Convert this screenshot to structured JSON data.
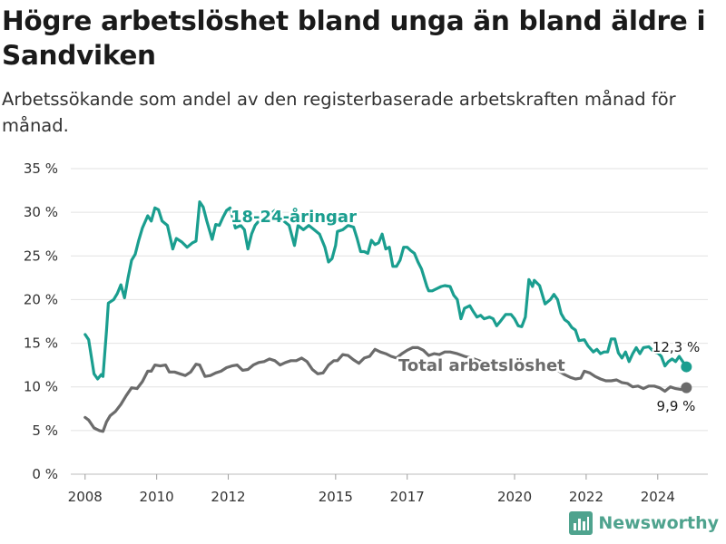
{
  "title": "Högre arbetslöshet bland unga än bland äldre i Sandviken",
  "subtitle": "Arbetssökande som andel av den registerbaserade arbetskraften månad för månad.",
  "brand": {
    "name": "Newsworthy",
    "icon": "bar-chart-icon",
    "color": "#4fa38e"
  },
  "chart_data": {
    "type": "line",
    "ylim": [
      0,
      35
    ],
    "yticks": [
      "0 %",
      "5 %",
      "10 %",
      "15 %",
      "20 %",
      "25 %",
      "30 %",
      "35 %"
    ],
    "ytick_values": [
      0,
      5,
      10,
      15,
      20,
      25,
      30,
      35
    ],
    "xlim": [
      2007.6,
      2025.4
    ],
    "xticks": [
      "2008",
      "2010",
      "2012",
      "2015",
      "2017",
      "2020",
      "2022",
      "2024"
    ],
    "xtick_values": [
      2008,
      2010,
      2012,
      2015,
      2017,
      2020,
      2022,
      2024
    ],
    "grid": true,
    "series": [
      {
        "name": "18-24-åringar",
        "color": "#1a9e8f",
        "end_label": "12,3 %",
        "points": [
          [
            2008.0,
            16.0
          ],
          [
            2008.1,
            15.4
          ],
          [
            2008.25,
            11.5
          ],
          [
            2008.35,
            10.9
          ],
          [
            2008.45,
            11.4
          ],
          [
            2008.5,
            11.2
          ],
          [
            2008.6,
            16.5
          ],
          [
            2008.65,
            19.6
          ],
          [
            2008.8,
            20.0
          ],
          [
            2008.9,
            20.7
          ],
          [
            2009.0,
            21.7
          ],
          [
            2009.1,
            20.2
          ],
          [
            2009.2,
            22.5
          ],
          [
            2009.3,
            24.5
          ],
          [
            2009.4,
            25.2
          ],
          [
            2009.5,
            26.8
          ],
          [
            2009.6,
            28.2
          ],
          [
            2009.75,
            29.6
          ],
          [
            2009.85,
            29.0
          ],
          [
            2009.95,
            30.5
          ],
          [
            2010.05,
            30.3
          ],
          [
            2010.15,
            29.0
          ],
          [
            2010.3,
            28.5
          ],
          [
            2010.45,
            25.8
          ],
          [
            2010.55,
            27.0
          ],
          [
            2010.7,
            26.6
          ],
          [
            2010.85,
            26.0
          ],
          [
            2011.0,
            26.5
          ],
          [
            2011.1,
            26.7
          ],
          [
            2011.2,
            31.2
          ],
          [
            2011.3,
            30.6
          ],
          [
            2011.4,
            29.0
          ],
          [
            2011.55,
            26.9
          ],
          [
            2011.65,
            28.6
          ],
          [
            2011.75,
            28.5
          ],
          [
            2011.85,
            29.4
          ],
          [
            2011.95,
            30.2
          ],
          [
            2012.05,
            30.5
          ],
          [
            2012.2,
            28.2
          ],
          [
            2012.35,
            28.5
          ],
          [
            2012.45,
            28.0
          ],
          [
            2012.55,
            25.8
          ],
          [
            2012.65,
            27.5
          ],
          [
            2012.75,
            28.5
          ],
          [
            2012.85,
            29.0
          ],
          [
            2013.0,
            29.5
          ],
          [
            2013.15,
            29.7
          ],
          [
            2013.3,
            30.2
          ],
          [
            2013.45,
            29.6
          ],
          [
            2013.55,
            29.0
          ],
          [
            2013.7,
            28.5
          ],
          [
            2013.85,
            26.2
          ],
          [
            2013.95,
            28.5
          ],
          [
            2014.1,
            28.0
          ],
          [
            2014.25,
            28.5
          ],
          [
            2014.4,
            28.0
          ],
          [
            2014.55,
            27.5
          ],
          [
            2014.7,
            26.0
          ],
          [
            2014.8,
            24.3
          ],
          [
            2014.9,
            24.7
          ],
          [
            2015.0,
            26.2
          ],
          [
            2015.05,
            27.8
          ],
          [
            2015.2,
            28.0
          ],
          [
            2015.35,
            28.5
          ],
          [
            2015.5,
            28.3
          ],
          [
            2015.6,
            27.0
          ],
          [
            2015.7,
            25.5
          ],
          [
            2015.8,
            25.5
          ],
          [
            2015.9,
            25.3
          ],
          [
            2016.0,
            26.8
          ],
          [
            2016.1,
            26.3
          ],
          [
            2016.2,
            26.5
          ],
          [
            2016.3,
            27.5
          ],
          [
            2016.4,
            25.8
          ],
          [
            2016.5,
            26.0
          ],
          [
            2016.6,
            23.8
          ],
          [
            2016.7,
            23.8
          ],
          [
            2016.8,
            24.5
          ],
          [
            2016.9,
            26.0
          ],
          [
            2017.0,
            26.0
          ],
          [
            2017.1,
            25.6
          ],
          [
            2017.2,
            25.3
          ],
          [
            2017.3,
            24.3
          ],
          [
            2017.4,
            23.5
          ],
          [
            2017.55,
            21.5
          ],
          [
            2017.6,
            21.0
          ],
          [
            2017.7,
            21.0
          ],
          [
            2017.85,
            21.3
          ],
          [
            2017.95,
            21.5
          ],
          [
            2018.05,
            21.6
          ],
          [
            2018.2,
            21.5
          ],
          [
            2018.3,
            20.5
          ],
          [
            2018.4,
            20.0
          ],
          [
            2018.5,
            17.8
          ],
          [
            2018.6,
            19.0
          ],
          [
            2018.75,
            19.3
          ],
          [
            2018.85,
            18.6
          ],
          [
            2018.95,
            18.0
          ],
          [
            2019.05,
            18.2
          ],
          [
            2019.15,
            17.8
          ],
          [
            2019.3,
            18.0
          ],
          [
            2019.4,
            17.8
          ],
          [
            2019.5,
            17.0
          ],
          [
            2019.6,
            17.5
          ],
          [
            2019.75,
            18.3
          ],
          [
            2019.9,
            18.3
          ],
          [
            2020.0,
            17.8
          ],
          [
            2020.1,
            17.0
          ],
          [
            2020.2,
            16.9
          ],
          [
            2020.3,
            18.0
          ],
          [
            2020.4,
            22.3
          ],
          [
            2020.5,
            21.5
          ],
          [
            2020.55,
            22.2
          ],
          [
            2020.7,
            21.6
          ],
          [
            2020.85,
            19.5
          ],
          [
            2021.0,
            20.0
          ],
          [
            2021.1,
            20.6
          ],
          [
            2021.2,
            20.0
          ],
          [
            2021.3,
            18.4
          ],
          [
            2021.4,
            17.7
          ],
          [
            2021.5,
            17.4
          ],
          [
            2021.6,
            16.8
          ],
          [
            2021.7,
            16.5
          ],
          [
            2021.8,
            15.3
          ],
          [
            2021.95,
            15.4
          ],
          [
            2022.05,
            14.7
          ],
          [
            2022.2,
            14.0
          ],
          [
            2022.3,
            14.3
          ],
          [
            2022.4,
            13.8
          ],
          [
            2022.5,
            14.0
          ],
          [
            2022.6,
            14.0
          ],
          [
            2022.7,
            15.5
          ],
          [
            2022.8,
            15.5
          ],
          [
            2022.9,
            13.9
          ],
          [
            2023.0,
            13.3
          ],
          [
            2023.1,
            14.0
          ],
          [
            2023.2,
            12.9
          ],
          [
            2023.3,
            13.8
          ],
          [
            2023.4,
            14.5
          ],
          [
            2023.5,
            13.8
          ],
          [
            2023.6,
            14.5
          ],
          [
            2023.75,
            14.6
          ],
          [
            2023.9,
            14.0
          ],
          [
            2024.0,
            13.9
          ],
          [
            2024.1,
            13.5
          ],
          [
            2024.2,
            12.4
          ],
          [
            2024.3,
            12.9
          ],
          [
            2024.4,
            13.2
          ],
          [
            2024.5,
            12.9
          ],
          [
            2024.6,
            13.5
          ],
          [
            2024.8,
            12.3
          ]
        ]
      },
      {
        "name": "Total arbetslöshet",
        "color": "#6b6b6b",
        "end_label": "9,9 %",
        "points": [
          [
            2008.0,
            6.5
          ],
          [
            2008.1,
            6.2
          ],
          [
            2008.25,
            5.3
          ],
          [
            2008.4,
            5.0
          ],
          [
            2008.5,
            4.9
          ],
          [
            2008.6,
            6.0
          ],
          [
            2008.7,
            6.7
          ],
          [
            2008.85,
            7.2
          ],
          [
            2009.0,
            8.0
          ],
          [
            2009.15,
            9.0
          ],
          [
            2009.3,
            9.9
          ],
          [
            2009.45,
            9.8
          ],
          [
            2009.6,
            10.6
          ],
          [
            2009.75,
            11.8
          ],
          [
            2009.85,
            11.8
          ],
          [
            2009.95,
            12.5
          ],
          [
            2010.1,
            12.4
          ],
          [
            2010.25,
            12.5
          ],
          [
            2010.35,
            11.7
          ],
          [
            2010.5,
            11.7
          ],
          [
            2010.65,
            11.5
          ],
          [
            2010.8,
            11.3
          ],
          [
            2010.95,
            11.7
          ],
          [
            2011.1,
            12.6
          ],
          [
            2011.2,
            12.5
          ],
          [
            2011.35,
            11.2
          ],
          [
            2011.5,
            11.3
          ],
          [
            2011.65,
            11.6
          ],
          [
            2011.8,
            11.8
          ],
          [
            2011.95,
            12.2
          ],
          [
            2012.1,
            12.4
          ],
          [
            2012.25,
            12.5
          ],
          [
            2012.4,
            11.9
          ],
          [
            2012.55,
            12.0
          ],
          [
            2012.7,
            12.5
          ],
          [
            2012.85,
            12.8
          ],
          [
            2013.0,
            12.9
          ],
          [
            2013.15,
            13.2
          ],
          [
            2013.3,
            13.0
          ],
          [
            2013.45,
            12.5
          ],
          [
            2013.6,
            12.8
          ],
          [
            2013.75,
            13.0
          ],
          [
            2013.9,
            13.0
          ],
          [
            2014.05,
            13.3
          ],
          [
            2014.2,
            12.9
          ],
          [
            2014.35,
            12.0
          ],
          [
            2014.5,
            11.5
          ],
          [
            2014.65,
            11.6
          ],
          [
            2014.8,
            12.5
          ],
          [
            2014.95,
            13.0
          ],
          [
            2015.05,
            13.0
          ],
          [
            2015.2,
            13.7
          ],
          [
            2015.35,
            13.6
          ],
          [
            2015.5,
            13.1
          ],
          [
            2015.65,
            12.7
          ],
          [
            2015.8,
            13.3
          ],
          [
            2015.95,
            13.5
          ],
          [
            2016.1,
            14.3
          ],
          [
            2016.25,
            14.0
          ],
          [
            2016.4,
            13.8
          ],
          [
            2016.55,
            13.5
          ],
          [
            2016.7,
            13.3
          ],
          [
            2016.85,
            13.8
          ],
          [
            2017.0,
            14.2
          ],
          [
            2017.15,
            14.5
          ],
          [
            2017.3,
            14.5
          ],
          [
            2017.45,
            14.2
          ],
          [
            2017.6,
            13.6
          ],
          [
            2017.75,
            13.8
          ],
          [
            2017.9,
            13.7
          ],
          [
            2018.05,
            14.0
          ],
          [
            2018.2,
            14.0
          ],
          [
            2018.4,
            13.8
          ],
          [
            2018.6,
            13.5
          ],
          [
            2018.8,
            13.3
          ],
          [
            2019.0,
            13.0
          ],
          [
            2019.2,
            12.7
          ],
          [
            2019.4,
            12.5
          ],
          [
            2019.6,
            12.3
          ],
          [
            2019.8,
            12.4
          ],
          [
            2020.0,
            12.3
          ],
          [
            2020.2,
            12.4
          ],
          [
            2020.4,
            12.6
          ],
          [
            2020.6,
            12.4
          ],
          [
            2020.8,
            12.2
          ],
          [
            2021.0,
            12.1
          ],
          [
            2021.2,
            11.9
          ],
          [
            2021.4,
            11.4
          ],
          [
            2021.55,
            11.1
          ],
          [
            2021.7,
            10.9
          ],
          [
            2021.85,
            11.0
          ],
          [
            2021.95,
            11.8
          ],
          [
            2022.1,
            11.6
          ],
          [
            2022.25,
            11.2
          ],
          [
            2022.4,
            10.9
          ],
          [
            2022.55,
            10.7
          ],
          [
            2022.7,
            10.7
          ],
          [
            2022.85,
            10.8
          ],
          [
            2023.0,
            10.5
          ],
          [
            2023.15,
            10.4
          ],
          [
            2023.3,
            10.0
          ],
          [
            2023.45,
            10.1
          ],
          [
            2023.6,
            9.8
          ],
          [
            2023.75,
            10.1
          ],
          [
            2023.9,
            10.1
          ],
          [
            2024.05,
            9.9
          ],
          [
            2024.2,
            9.5
          ],
          [
            2024.35,
            10.0
          ],
          [
            2024.5,
            9.8
          ],
          [
            2024.65,
            9.7
          ],
          [
            2024.8,
            9.9
          ]
        ]
      }
    ]
  }
}
